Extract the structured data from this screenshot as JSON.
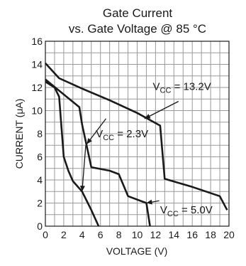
{
  "chart_data": {
    "type": "line",
    "title": [
      "Gate Current",
      "vs. Gate Voltage @ 85 °C"
    ],
    "xlabel": "VOLTAGE (V)",
    "ylabel": "CURRENT (μA)",
    "xlim": [
      0,
      20
    ],
    "ylim": [
      0,
      16
    ],
    "x_ticks": [
      0,
      2,
      4,
      6,
      8,
      10,
      12,
      14,
      16,
      18,
      20
    ],
    "y_ticks": [
      0,
      2,
      4,
      6,
      8,
      10,
      12,
      14,
      16
    ],
    "grid": true,
    "series": [
      {
        "name": "VCC = 13.2V",
        "points": [
          [
            0,
            14.1
          ],
          [
            1.5,
            12.8
          ],
          [
            4,
            11.9
          ],
          [
            7,
            10.9
          ],
          [
            10,
            9.8
          ],
          [
            12.5,
            8.7
          ],
          [
            13,
            4.1
          ],
          [
            16,
            3.4
          ],
          [
            19,
            2.6
          ],
          [
            19.8,
            1.4
          ]
        ]
      },
      {
        "name": "VCC = 2.3V",
        "points": [
          [
            0,
            12.5
          ],
          [
            1,
            12.0
          ],
          [
            1.5,
            11.2
          ],
          [
            2,
            6.0
          ],
          [
            2.5,
            4.8
          ],
          [
            3,
            3.9
          ],
          [
            4,
            3.0
          ],
          [
            5,
            1.4
          ],
          [
            5.8,
            0
          ]
        ]
      },
      {
        "name": "VCC = 5.0V",
        "points": [
          [
            0,
            12.7
          ],
          [
            2,
            11.4
          ],
          [
            3.7,
            10.3
          ],
          [
            4,
            8.8
          ],
          [
            5,
            5.1
          ],
          [
            7,
            4.8
          ],
          [
            8,
            4.5
          ],
          [
            9,
            2.6
          ],
          [
            11,
            2.0
          ],
          [
            11.4,
            0
          ]
        ]
      }
    ],
    "annotations": [
      {
        "base": "V",
        "sub": "CC",
        "value": " = 13.2V"
      },
      {
        "base": "V",
        "sub": "CC",
        "value": " = 2.3V"
      },
      {
        "base": "V",
        "sub": "CC",
        "value": " = 5.0V"
      }
    ]
  }
}
